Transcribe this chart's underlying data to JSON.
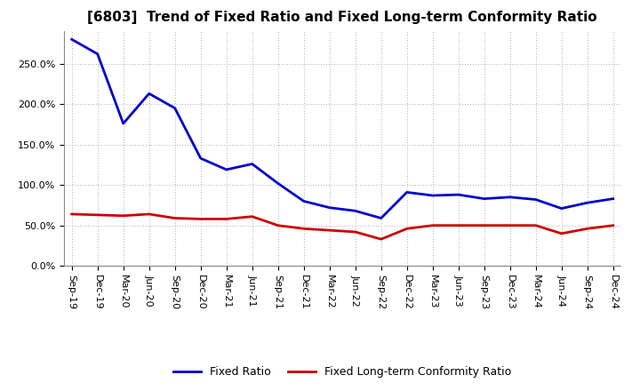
{
  "title": "[6803]  Trend of Fixed Ratio and Fixed Long-term Conformity Ratio",
  "x_labels": [
    "Sep-19",
    "Dec-19",
    "Mar-20",
    "Jun-20",
    "Sep-20",
    "Dec-20",
    "Mar-21",
    "Jun-21",
    "Sep-21",
    "Dec-21",
    "Mar-22",
    "Jun-22",
    "Sep-22",
    "Dec-22",
    "Mar-23",
    "Jun-23",
    "Sep-23",
    "Dec-23",
    "Mar-24",
    "Jun-24",
    "Sep-24",
    "Dec-24"
  ],
  "fixed_ratio": [
    280,
    262,
    176,
    213,
    195,
    133,
    119,
    126,
    102,
    80,
    72,
    68,
    59,
    91,
    87,
    88,
    83,
    85,
    82,
    71,
    78,
    83
  ],
  "fixed_lt_ratio": [
    64,
    63,
    62,
    64,
    59,
    58,
    58,
    61,
    50,
    46,
    44,
    42,
    33,
    46,
    50,
    50,
    50,
    50,
    50,
    40,
    46,
    50
  ],
  "fixed_ratio_color": "#0000CC",
  "fixed_lt_ratio_color": "#CC0000",
  "ylim": [
    0,
    290
  ],
  "yticks": [
    0,
    50,
    100,
    150,
    200,
    250
  ],
  "background_color": "#FFFFFF",
  "plot_bg_color": "#FFFFFF",
  "grid_color": "#BBBBBB",
  "legend_fixed_ratio": "Fixed Ratio",
  "legend_fixed_lt_ratio": "Fixed Long-term Conformity Ratio",
  "title_fontsize": 11,
  "tick_fontsize": 8,
  "legend_fontsize": 9,
  "line_width": 2.0
}
